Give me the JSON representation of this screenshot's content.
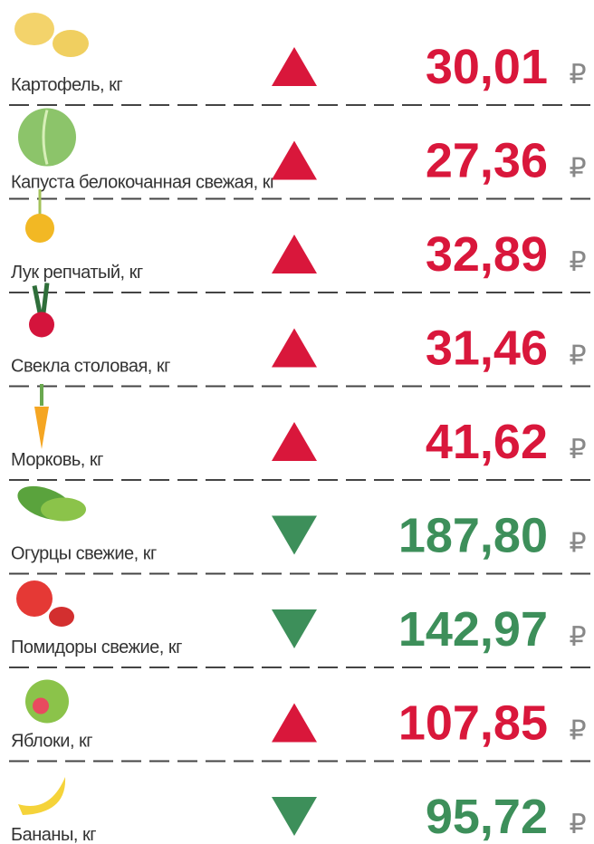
{
  "currency": "₽",
  "items": [
    {
      "name": "Картофель, кг",
      "price": "30,01",
      "trend": "up"
    },
    {
      "name": "Капуста белокочанная свежая, кг",
      "price": "27,36",
      "trend": "up"
    },
    {
      "name": "Лук репчатый, кг",
      "price": "32,89",
      "trend": "up"
    },
    {
      "name": "Свекла столовая, кг",
      "price": "31,46",
      "trend": "up"
    },
    {
      "name": "Морковь, кг",
      "price": "41,62",
      "trend": "up"
    },
    {
      "name": "Огурцы свежие, кг",
      "price": "187,80",
      "trend": "down"
    },
    {
      "name": "Помидоры свежие, кг",
      "price": "142,97",
      "trend": "down"
    },
    {
      "name": "Яблоки, кг",
      "price": "107,85",
      "trend": "up"
    },
    {
      "name": "Бананы, кг",
      "price": "95,72",
      "trend": "down"
    }
  ],
  "colors": {
    "up": "#d9173b",
    "down": "#3d8f5a"
  }
}
